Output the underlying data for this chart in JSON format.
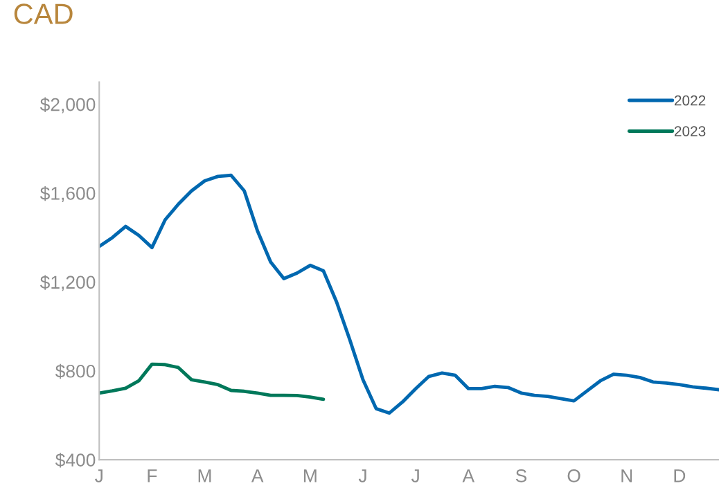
{
  "chart_data": {
    "type": "line",
    "title": "CAD",
    "categories": [
      "J",
      null,
      null,
      null,
      "F",
      null,
      null,
      null,
      "M",
      null,
      null,
      null,
      "A",
      null,
      null,
      null,
      "M",
      null,
      null,
      null,
      "J",
      null,
      null,
      null,
      "J",
      null,
      null,
      null,
      "A",
      null,
      null,
      null,
      "S",
      null,
      null,
      null,
      "O",
      null,
      null,
      null,
      "N",
      null,
      null,
      null,
      "D",
      null,
      null,
      null
    ],
    "ylim": [
      400,
      2100
    ],
    "yticks": [
      {
        "value": 400,
        "label": "$400"
      },
      {
        "value": 800,
        "label": "$800"
      },
      {
        "value": 1200,
        "label": "$1,200"
      },
      {
        "value": 1600,
        "label": "$1,600"
      },
      {
        "value": 2000,
        "label": "$2,000"
      }
    ],
    "grid": false,
    "legend": "top right",
    "marker": "none",
    "line_style": "solid",
    "series": [
      {
        "name": "2022",
        "color": "#0068b0",
        "values": [
          1360,
          1400,
          1450,
          1410,
          1355,
          1480,
          1550,
          1610,
          1655,
          1675,
          1680,
          1610,
          1430,
          1290,
          1215,
          1240,
          1275,
          1250,
          1110,
          940,
          760,
          630,
          610,
          660,
          720,
          775,
          790,
          780,
          720,
          720,
          730,
          725,
          700,
          690,
          685,
          675,
          665,
          710,
          755,
          785,
          780,
          770,
          750,
          745,
          738,
          728,
          722,
          715
        ]
      },
      {
        "name": "2023",
        "color": "#00785a",
        "values": [
          700,
          710,
          722,
          755,
          830,
          828,
          815,
          760,
          750,
          738,
          712,
          708,
          700,
          690,
          690,
          689,
          682,
          672,
          null,
          null,
          null,
          null,
          null,
          null,
          null,
          null,
          null,
          null,
          null,
          null,
          null,
          null,
          null,
          null,
          null,
          null,
          null,
          null,
          null,
          null,
          null,
          null,
          null,
          null,
          null,
          null,
          null,
          null
        ]
      }
    ]
  }
}
